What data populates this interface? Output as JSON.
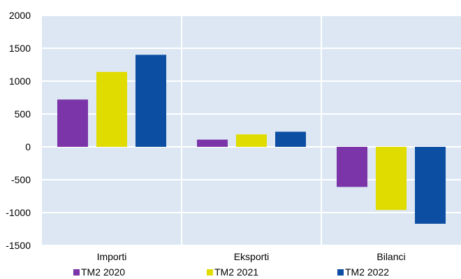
{
  "chart_data": {
    "type": "bar",
    "categories": [
      "Importi",
      "Eksporti",
      "Bilanci"
    ],
    "series": [
      {
        "name": "TM2 2020",
        "color": "#7b35a8",
        "values": [
          720,
          110,
          -610
        ]
      },
      {
        "name": "TM2 2021",
        "color": "#e0dc00",
        "values": [
          1140,
          190,
          -960
        ]
      },
      {
        "name": "TM2 2022",
        "color": "#0b4ea2",
        "values": [
          1400,
          230,
          -1170
        ]
      }
    ],
    "ylim": [
      -1500,
      2000
    ],
    "yticks": [
      -1500,
      -1000,
      -500,
      0,
      500,
      1000,
      1500,
      2000
    ],
    "grid": true,
    "legend_position": "bottom",
    "plot_background": "#dce7f3"
  }
}
